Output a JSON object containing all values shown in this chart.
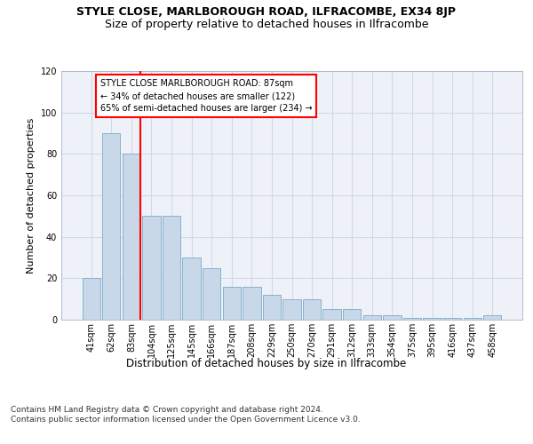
{
  "title1": "STYLE CLOSE, MARLBOROUGH ROAD, ILFRACOMBE, EX34 8JP",
  "title2": "Size of property relative to detached houses in Ilfracombe",
  "xlabel": "Distribution of detached houses by size in Ilfracombe",
  "ylabel": "Number of detached properties",
  "categories": [
    "41sqm",
    "62sqm",
    "83sqm",
    "104sqm",
    "125sqm",
    "145sqm",
    "166sqm",
    "187sqm",
    "208sqm",
    "229sqm",
    "250sqm",
    "270sqm",
    "291sqm",
    "312sqm",
    "333sqm",
    "354sqm",
    "375sqm",
    "395sqm",
    "416sqm",
    "437sqm",
    "458sqm"
  ],
  "values": [
    20,
    90,
    80,
    50,
    50,
    30,
    25,
    16,
    16,
    12,
    10,
    10,
    5,
    5,
    2,
    2,
    1,
    1,
    1,
    1,
    2
  ],
  "bar_color": "#c8d8e8",
  "bar_edge_color": "#7aaac8",
  "vline_color": "red",
  "annotation_text": "STYLE CLOSE MARLBOROUGH ROAD: 87sqm\n← 34% of detached houses are smaller (122)\n65% of semi-detached houses are larger (234) →",
  "annotation_box_color": "white",
  "annotation_box_edge": "red",
  "ylim": [
    0,
    120
  ],
  "yticks": [
    0,
    20,
    40,
    60,
    80,
    100,
    120
  ],
  "grid_color": "#d0d8ec",
  "bg_color": "#eef2f8",
  "footer": "Contains HM Land Registry data © Crown copyright and database right 2024.\nContains public sector information licensed under the Open Government Licence v3.0.",
  "title1_fontsize": 9,
  "title2_fontsize": 9,
  "xlabel_fontsize": 8.5,
  "ylabel_fontsize": 8,
  "tick_fontsize": 7,
  "footer_fontsize": 6.5
}
